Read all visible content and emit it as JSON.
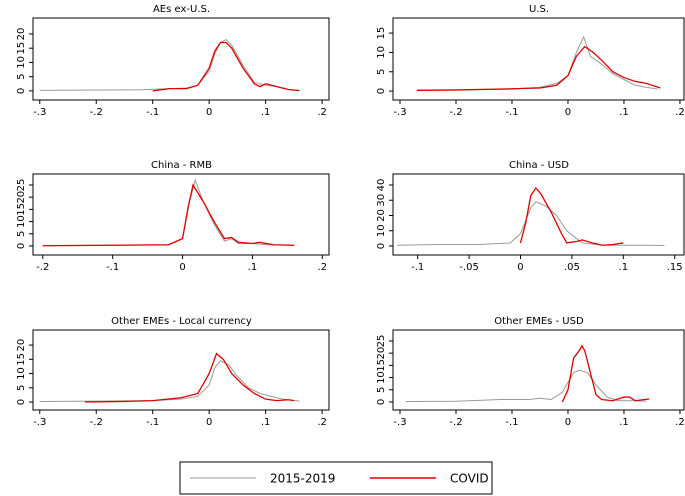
{
  "chart_data": [
    {
      "type": "line",
      "title": "AEs ex-U.S.",
      "xlim": [
        -0.312,
        0.214
      ],
      "xticks": [
        {
          "value": -0.3,
          "label": "-.3"
        },
        {
          "value": -0.2,
          "label": "-.2"
        },
        {
          "value": -0.1,
          "label": "-.1"
        },
        0,
        {
          "value": 0.1,
          "label": ".1"
        },
        {
          "value": 0.2,
          "label": ".2"
        }
      ],
      "ylim": [
        -3.2,
        25.6
      ],
      "yticks": [
        0,
        5,
        10,
        15,
        20
      ],
      "series": [
        {
          "name": "2015-2019",
          "color": "#999999",
          "x": [
            -0.3,
            -0.2,
            -0.12,
            -0.07,
            -0.04,
            -0.02,
            0,
            0.01,
            0.02,
            0.03,
            0.04,
            0.06,
            0.08,
            0.1,
            0.12,
            0.14,
            0.16
          ],
          "values": [
            0.2,
            0.3,
            0.4,
            0.8,
            1,
            2,
            7,
            13,
            17,
            18,
            16,
            9,
            3,
            2,
            1.5,
            0.5,
            0.2
          ]
        },
        {
          "name": "COVID",
          "color": "#e00000",
          "x": [
            -0.1,
            -0.07,
            -0.04,
            -0.02,
            0,
            0.01,
            0.02,
            0.03,
            0.04,
            0.06,
            0.08,
            0.09,
            0.1,
            0.12,
            0.14,
            0.16
          ],
          "values": [
            0,
            0.8,
            0.8,
            2,
            8,
            14,
            17,
            17,
            15,
            8,
            2.5,
            1.5,
            2.5,
            1.5,
            0.5,
            0.1
          ]
        }
      ]
    },
    {
      "type": "line",
      "title": "U.S.",
      "xlim": [
        -0.3125,
        0.209
      ],
      "xticks": [
        {
          "value": -0.3,
          "label": "-.3"
        },
        {
          "value": -0.2,
          "label": "-.2"
        },
        {
          "value": -0.1,
          "label": "-.1"
        },
        0,
        {
          "value": 0.1,
          "label": ".1"
        },
        {
          "value": 0.2,
          "label": ".2"
        }
      ],
      "ylim": [
        -2.3,
        18.9
      ],
      "yticks": [
        0,
        5,
        10,
        15
      ],
      "series": [
        {
          "name": "2015-2019",
          "color": "#999999",
          "x": [
            -0.27,
            -0.2,
            -0.1,
            -0.05,
            -0.02,
            0,
            0.015,
            0.028,
            0.04,
            0.06,
            0.08,
            0.1,
            0.12,
            0.14,
            0.16
          ],
          "values": [
            0.2,
            0.3,
            0.5,
            1,
            2,
            4,
            10,
            14,
            9,
            7,
            4.5,
            3,
            1.5,
            1,
            0.5
          ]
        },
        {
          "name": "COVID",
          "color": "#e00000",
          "x": [
            -0.27,
            -0.2,
            -0.1,
            -0.05,
            -0.02,
            0,
            0.015,
            0.03,
            0.045,
            0.06,
            0.08,
            0.1,
            0.12,
            0.14,
            0.165
          ],
          "values": [
            0.2,
            0.3,
            0.6,
            0.8,
            1.5,
            4,
            9,
            11.5,
            10,
            8,
            5,
            3.5,
            2.5,
            2,
            0.8
          ]
        }
      ]
    },
    {
      "type": "line",
      "title": "China - RMB",
      "xlim": [
        -0.214,
        0.211
      ],
      "xticks": [
        {
          "value": -0.2,
          "label": "-.2"
        },
        {
          "value": -0.1,
          "label": "-.1"
        },
        0,
        {
          "value": 0.1,
          "label": ".1"
        },
        {
          "value": 0.2,
          "label": ".2"
        }
      ],
      "ylim": [
        -3.7,
        29.5
      ],
      "yticks": [
        0,
        5,
        10,
        15,
        20,
        25
      ],
      "series": [
        {
          "name": "2015-2019",
          "color": "#999999",
          "x": [
            -0.2,
            -0.1,
            -0.02,
            0,
            0.01,
            0.018,
            0.03,
            0.045,
            0.06,
            0.07,
            0.08,
            0.1,
            0.12,
            0.16
          ],
          "values": [
            0.2,
            0.3,
            0.5,
            3,
            18,
            27,
            18,
            9,
            2,
            3,
            1,
            1,
            0.5,
            0.3
          ]
        },
        {
          "name": "COVID",
          "color": "#e00000",
          "x": [
            -0.2,
            -0.1,
            -0.02,
            0,
            0.008,
            0.015,
            0.03,
            0.045,
            0.06,
            0.07,
            0.08,
            0.1,
            0.11,
            0.13,
            0.16
          ],
          "values": [
            0.1,
            0.3,
            0.5,
            3,
            16,
            25,
            18,
            10,
            3,
            3.5,
            1.5,
            1,
            1.5,
            0.5,
            0.3
          ]
        }
      ]
    },
    {
      "type": "line",
      "title": "China - USD",
      "xlim": [
        -0.124,
        0.16
      ],
      "xticks": [
        {
          "value": -0.1,
          "label": "-.1"
        },
        {
          "value": -0.05,
          "label": "-.05"
        },
        0,
        {
          "value": 0.05,
          "label": ".05"
        },
        {
          "value": 0.1,
          "label": ".1"
        },
        {
          "value": 0.15,
          "label": ".15"
        }
      ],
      "ylim": [
        -5.9,
        47.2
      ],
      "yticks": [
        0,
        10,
        20,
        30,
        40
      ],
      "series": [
        {
          "name": "2015-2019",
          "color": "#999999",
          "x": [
            -0.12,
            -0.08,
            -0.04,
            -0.01,
            0,
            0.01,
            0.015,
            0.025,
            0.035,
            0.045,
            0.06,
            0.08,
            0.1,
            0.12,
            0.14
          ],
          "values": [
            0.5,
            1,
            1,
            2,
            8,
            25,
            29,
            26,
            20,
            10,
            2,
            0.5,
            0.5,
            0.5,
            0.3
          ]
        },
        {
          "name": "COVID",
          "color": "#e00000",
          "x": [
            0,
            0.005,
            0.01,
            0.015,
            0.02,
            0.03,
            0.04,
            0.045,
            0.055,
            0.06,
            0.07,
            0.08,
            0.09,
            0.1
          ],
          "values": [
            2,
            15,
            33,
            38,
            34,
            22,
            8,
            2,
            3,
            4,
            2,
            0.5,
            1,
            2
          ]
        }
      ]
    },
    {
      "type": "line",
      "title": "Other EMEs - Local currency",
      "xlim": [
        -0.312,
        0.214
      ],
      "xticks": [
        {
          "value": -0.3,
          "label": "-.3"
        },
        {
          "value": -0.2,
          "label": "-.2"
        },
        {
          "value": -0.1,
          "label": "-.1"
        },
        0,
        {
          "value": 0.1,
          "label": ".1"
        },
        {
          "value": 0.2,
          "label": ".2"
        }
      ],
      "ylim": [
        -2.8,
        25.3
      ],
      "yticks": [
        0,
        5,
        10,
        15,
        20
      ],
      "series": [
        {
          "name": "2015-2019",
          "color": "#999999",
          "x": [
            -0.3,
            -0.2,
            -0.1,
            -0.05,
            -0.02,
            0,
            0.01,
            0.02,
            0.035,
            0.05,
            0.07,
            0.09,
            0.11,
            0.13,
            0.16
          ],
          "values": [
            0.2,
            0.3,
            0.5,
            1,
            2,
            6,
            12,
            14.5,
            13,
            9,
            5,
            3,
            2,
            1,
            0.3
          ]
        },
        {
          "name": "COVID",
          "color": "#e00000",
          "x": [
            -0.22,
            -0.15,
            -0.1,
            -0.05,
            -0.02,
            0,
            0.013,
            0.025,
            0.04,
            0.06,
            0.08,
            0.1,
            0.12,
            0.14,
            0.15
          ],
          "values": [
            0,
            0.2,
            0.5,
            1.5,
            3,
            10,
            17,
            15,
            10,
            6,
            3,
            1,
            0.5,
            0.8,
            0.5
          ]
        }
      ]
    },
    {
      "type": "line",
      "title": "Other EMEs - USD",
      "xlim": [
        -0.3125,
        0.209
      ],
      "xticks": [
        {
          "value": -0.3,
          "label": "-.3"
        },
        {
          "value": -0.2,
          "label": "-.2"
        },
        {
          "value": -0.1,
          "label": "-.1"
        },
        0,
        {
          "value": 0.1,
          "label": ".1"
        },
        {
          "value": 0.2,
          "label": ".2"
        }
      ],
      "ylim": [
        -3.3,
        29.5
      ],
      "yticks": [
        0,
        5,
        10,
        15,
        20,
        25
      ],
      "series": [
        {
          "name": "2015-2019",
          "color": "#999999",
          "x": [
            -0.29,
            -0.2,
            -0.12,
            -0.07,
            -0.05,
            -0.03,
            -0.01,
            0,
            0.01,
            0.02,
            0.035,
            0.05,
            0.07,
            0.09,
            0.12,
            0.14
          ],
          "values": [
            0.2,
            0.3,
            1,
            1,
            1.5,
            1,
            4,
            8,
            12,
            13,
            12,
            7,
            2,
            0.5,
            0.5,
            0.3
          ]
        },
        {
          "name": "COVID",
          "color": "#e00000",
          "x": [
            -0.01,
            0,
            0.01,
            0.02,
            0.025,
            0.03,
            0.04,
            0.05,
            0.06,
            0.08,
            0.1,
            0.11,
            0.12,
            0.13,
            0.145
          ],
          "values": [
            0,
            5,
            18,
            21,
            23,
            21,
            12,
            3,
            1,
            0.5,
            2,
            2,
            0.5,
            0.8,
            1.2
          ]
        }
      ]
    }
  ]
}
